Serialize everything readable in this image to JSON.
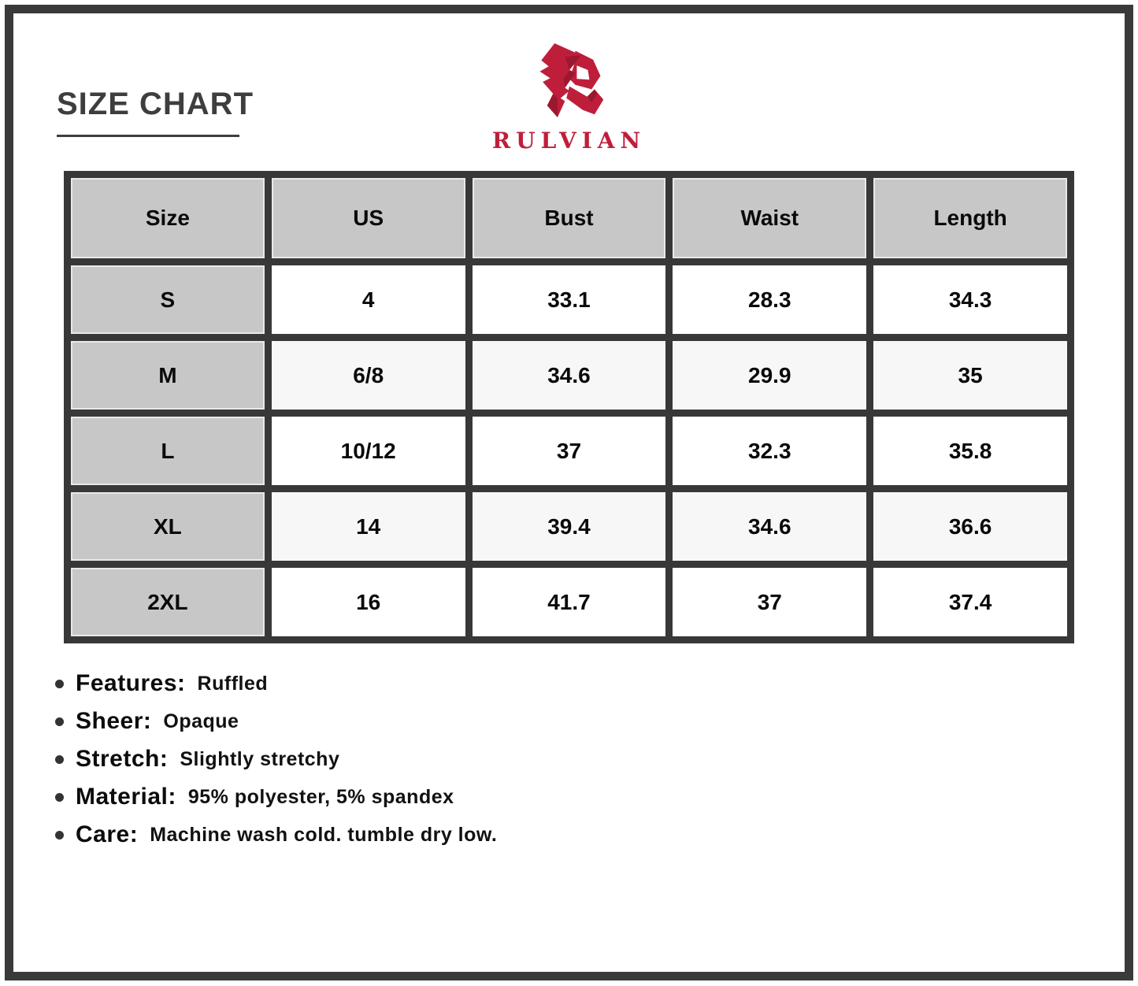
{
  "page": {
    "title": "SIZE CHART"
  },
  "brand": {
    "name": "RULVIAN",
    "logo_icon": "rulvian-r-monogram-icon",
    "logo_color": "#bf1e3b"
  },
  "table": {
    "headers": [
      "Size",
      "US",
      "Bust",
      "Waist",
      "Length"
    ],
    "rows": [
      [
        "S",
        "4",
        "33.1",
        "28.3",
        "34.3"
      ],
      [
        "M",
        "6/8",
        "34.6",
        "29.9",
        "35"
      ],
      [
        "L",
        "10/12",
        "37",
        "32.3",
        "35.8"
      ],
      [
        "XL",
        "14",
        "39.4",
        "34.6",
        "36.6"
      ],
      [
        "2XL",
        "16",
        "41.7",
        "37",
        "37.4"
      ]
    ]
  },
  "details": [
    {
      "label": "Features:",
      "value": "Ruffled"
    },
    {
      "label": "Sheer:",
      "value": "Opaque"
    },
    {
      "label": "Stretch:",
      "value": "Slightly stretchy"
    },
    {
      "label": "Material:",
      "value": "95% polyester, 5% spandex"
    },
    {
      "label": "Care:",
      "value": "Machine wash cold. tumble dry low."
    }
  ],
  "colors": {
    "accent_red": "#bf1e3b",
    "border_dark": "#3a3a3a",
    "header_gray": "#c7c7c7",
    "text_dark": "#0a0a0a"
  }
}
